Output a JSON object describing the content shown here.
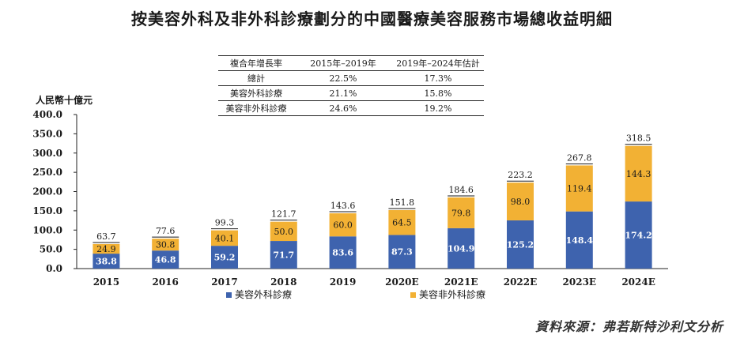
{
  "title": "按美容外科及非外科診療劃分的中國醫療美容服務市場總收益明細",
  "unit_label": "人民幣十億元",
  "source": "資料來源：弗若斯特沙利文分析",
  "colors": {
    "surgical": "#3E63AE",
    "nonsurgical": "#F2B134",
    "axis": "#222222"
  },
  "cagr_table": {
    "headers": [
      "複合年增長率",
      "2015年–2019年",
      "2019年–2024年估計"
    ],
    "rows": [
      [
        "總計",
        "22.5%",
        "17.3%"
      ],
      [
        "美容外科診療",
        "21.1%",
        "15.8%"
      ],
      [
        "美容非外科診療",
        "24.6%",
        "19.2%"
      ]
    ]
  },
  "chart_data": {
    "type": "bar",
    "stacked": true,
    "title": "按美容外科及非外科診療劃分的中國醫療美容服務市場總收益明細",
    "ylabel": "人民幣十億元",
    "ylim": [
      0,
      400
    ],
    "yticks": [
      "0.0",
      "50.0",
      "100.0",
      "150.0",
      "200.0",
      "250.0",
      "300.0",
      "350.0",
      "400.0"
    ],
    "categories": [
      "2015",
      "2016",
      "2017",
      "2018",
      "2019",
      "2020E",
      "2021E",
      "2022E",
      "2023E",
      "2024E"
    ],
    "series": [
      {
        "name": "美容外科診療",
        "values": [
          38.8,
          46.8,
          59.2,
          71.7,
          83.6,
          87.3,
          104.9,
          125.2,
          148.4,
          174.2
        ]
      },
      {
        "name": "美容非外科診療",
        "values": [
          24.9,
          30.8,
          40.1,
          50.0,
          60.0,
          64.5,
          79.8,
          98.0,
          119.4,
          144.3
        ]
      }
    ],
    "value_labels": {
      "surgical": [
        "38.8",
        "46.8",
        "59.2",
        "71.7",
        "83.6",
        "87.3",
        "104.9",
        "125.2",
        "148.4",
        "174.2"
      ],
      "nonsurgical": [
        "24.9",
        "30.8",
        "40.1",
        "50.0",
        "60.0",
        "64.5",
        "79.8",
        "98.0",
        "119.4",
        "144.3"
      ]
    },
    "totals": [
      "63.7",
      "77.6",
      "99.3",
      "121.7",
      "143.6",
      "151.8",
      "184.6",
      "223.2",
      "267.8",
      "318.5"
    ],
    "legend": [
      "美容外科診療",
      "美容非外科診療"
    ],
    "legend_position": "bottom"
  }
}
